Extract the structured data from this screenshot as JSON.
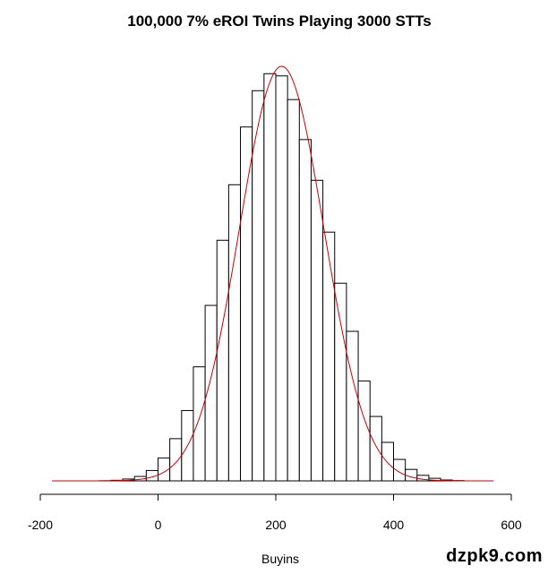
{
  "chart_data": {
    "type": "bar",
    "title": "100,000 7% eROI Twins Playing 3000 STTs",
    "xlabel": "Buyins",
    "ylabel": "",
    "xlim": [
      -200,
      600
    ],
    "x_ticks": [
      "-200",
      "0",
      "200",
      "400",
      "600"
    ],
    "y_axis_visible": false,
    "grid": false,
    "bin_width": 20,
    "series": [
      {
        "kind": "histogram",
        "bins": [
          -100,
          -80,
          -60,
          -40,
          -20,
          0,
          20,
          40,
          60,
          80,
          100,
          120,
          140,
          160,
          180,
          200,
          220,
          240,
          260,
          280,
          300,
          320,
          340,
          360,
          380,
          400,
          420,
          440,
          460,
          480,
          500
        ],
        "values": [
          0.002,
          0.008,
          0.025,
          0.06,
          0.14,
          0.31,
          0.57,
          0.95,
          1.54,
          2.37,
          3.25,
          4.0,
          4.78,
          5.27,
          5.5,
          5.47,
          5.15,
          4.61,
          4.06,
          3.36,
          2.67,
          2.02,
          1.35,
          0.87,
          0.52,
          0.29,
          0.155,
          0.075,
          0.035,
          0.012,
          0.004
        ]
      },
      {
        "kind": "density-curve",
        "color": "#cc0000",
        "x_range": [
          -180,
          570
        ],
        "mean": 210,
        "sd": 72,
        "peak": 5.6
      }
    ]
  },
  "watermark": "dzpk9.com"
}
